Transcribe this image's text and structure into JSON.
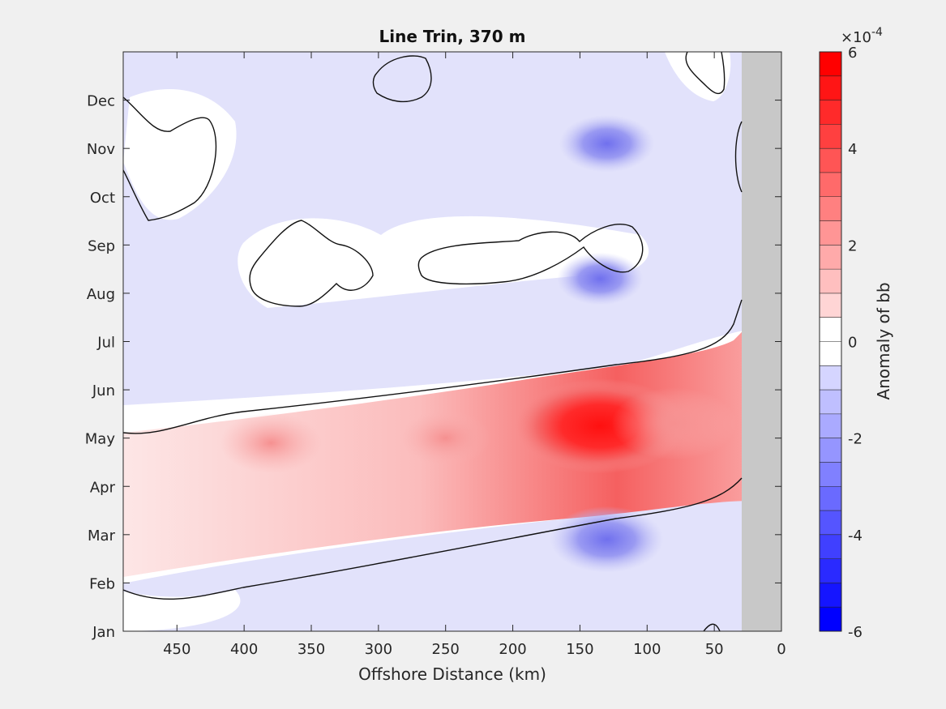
{
  "chart_data": {
    "type": "heatmap",
    "title": "Line Trin, 370 m",
    "xlabel": "Offshore Distance (km)",
    "ylabel": "",
    "xlim": [
      490,
      0
    ],
    "x_reversed": true,
    "x_ticks": [
      450,
      400,
      350,
      300,
      250,
      200,
      150,
      100,
      50,
      0
    ],
    "y_ticks": [
      "Jan",
      "Feb",
      "Mar",
      "Apr",
      "May",
      "Jun",
      "Jul",
      "Aug",
      "Sep",
      "Oct",
      "Nov",
      "Dec"
    ],
    "colorbar": {
      "label": "Anomaly of bb",
      "exponent": "×10-4",
      "exponent_base": "×10",
      "exponent_power": "-4",
      "range": [
        -6,
        6
      ],
      "ticks": [
        6,
        4,
        2,
        0,
        -2,
        -4,
        -6
      ],
      "levels": 24,
      "colors": {
        "negative": "#0000ff",
        "zero": "#ffffff",
        "positive": "#ff0000"
      }
    },
    "no_data_region": {
      "x_from": 30,
      "x_to": 0,
      "color": "#c8c8c8"
    },
    "features": [
      {
        "kind": "positive",
        "x": 135,
        "month": 4.25,
        "peak": 5.5
      },
      {
        "kind": "positive",
        "x": 80,
        "month": 4.3,
        "peak": 3.5
      },
      {
        "kind": "positive",
        "x": 380,
        "month": 3.9,
        "peak": 2.5
      },
      {
        "kind": "positive",
        "x": 250,
        "month": 4.0,
        "peak": 2.0
      },
      {
        "kind": "negative",
        "x": 130,
        "month": 1.9,
        "peak": -3.0
      },
      {
        "kind": "negative",
        "x": 130,
        "month": 10.1,
        "peak": -2.2
      },
      {
        "kind": "negative",
        "x": 135,
        "month": 7.3,
        "peak": -1.8
      }
    ]
  }
}
